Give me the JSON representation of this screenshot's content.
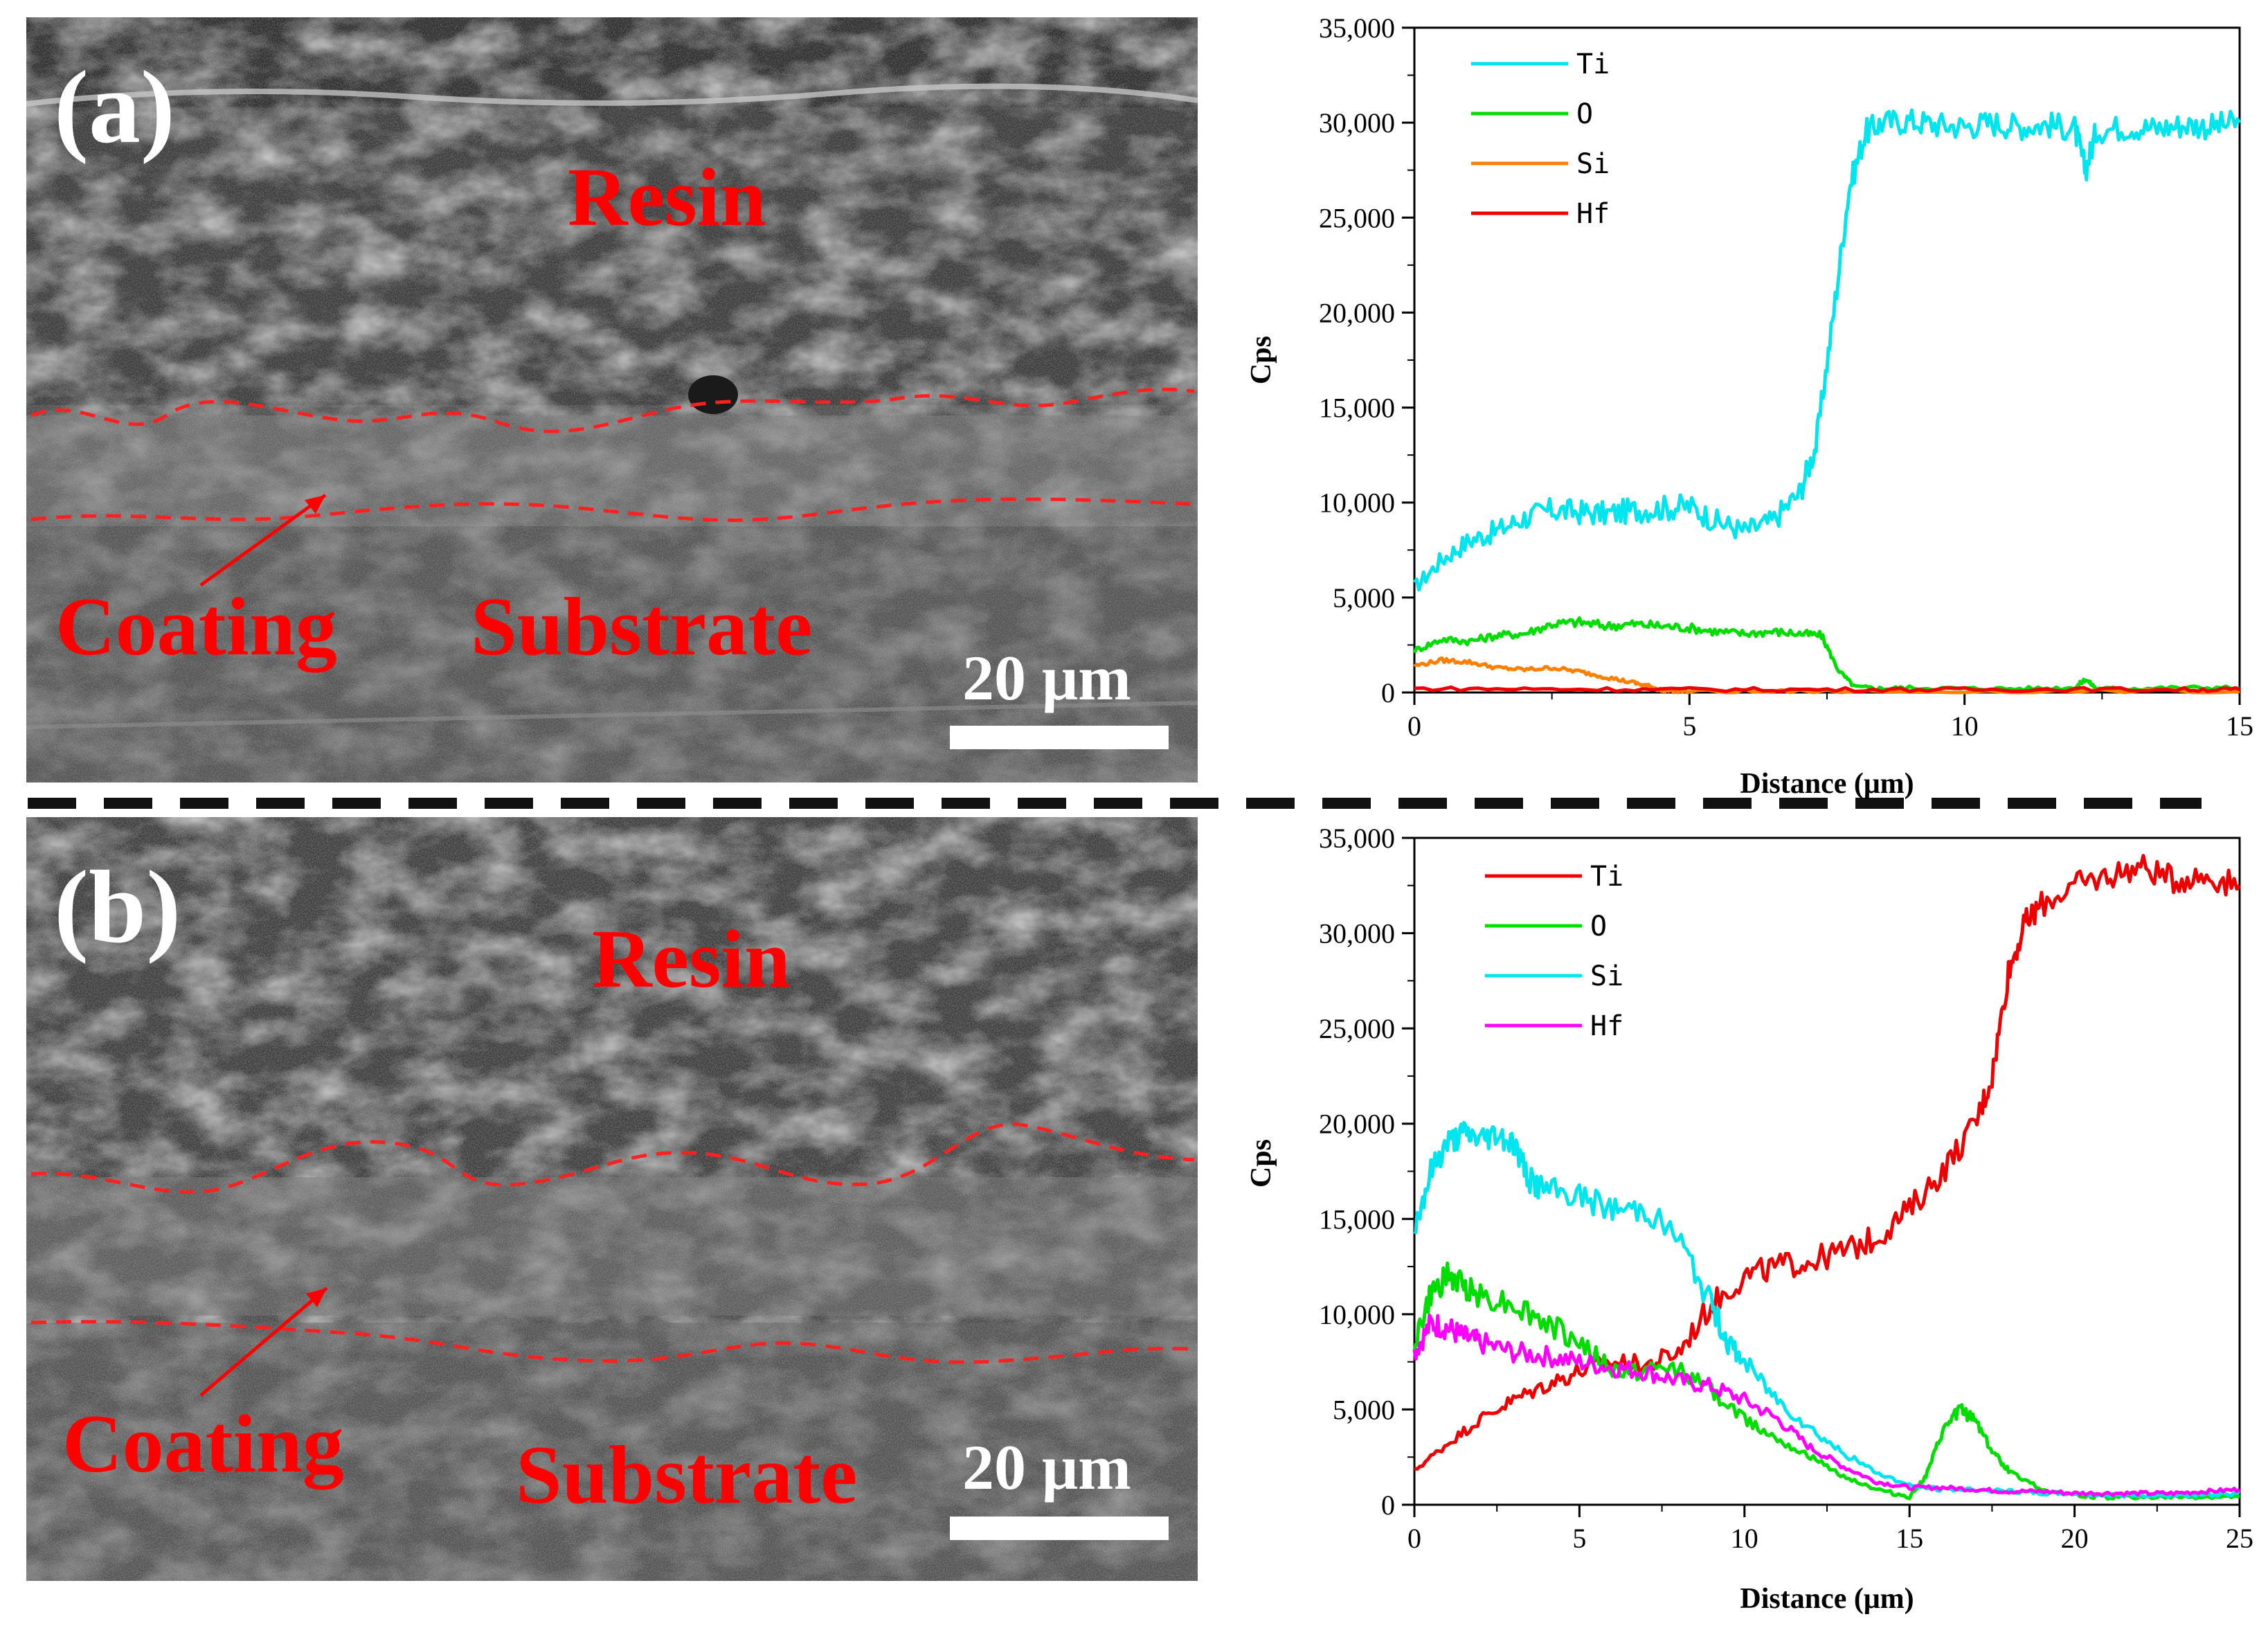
{
  "panels": [
    {
      "label": "(a)",
      "sem": {
        "labels": {
          "resin": "Resin",
          "coating": "Coating",
          "substrate": "Substrate"
        },
        "scale_bar": "20 μm"
      }
    },
    {
      "label": "(b)",
      "sem": {
        "labels": {
          "resin": "Resin",
          "coating": "Coating",
          "substrate": "Substrate"
        },
        "scale_bar": "20 μm"
      }
    }
  ],
  "colors": {
    "cyan": "#00e5ee",
    "green": "#00dd00",
    "orange": "#ff7f00",
    "red": "#ee0000",
    "magenta": "#ff00ff",
    "annotation_red": "#ff0000"
  },
  "chart_data": [
    {
      "type": "line",
      "title": "",
      "xlabel": "Distance (μm)",
      "ylabel": "Cps",
      "xlim": [
        0,
        15
      ],
      "ylim": [
        0,
        35000
      ],
      "xticks": [
        0,
        5,
        10,
        15
      ],
      "xtick_labels": [
        "0",
        "5",
        "10",
        "15"
      ],
      "yticks": [
        0,
        5000,
        10000,
        15000,
        20000,
        25000,
        30000,
        35000
      ],
      "ytick_labels": [
        "0",
        "5,000",
        "10,000",
        "15,000",
        "20,000",
        "25,000",
        "30,000",
        "35,000"
      ],
      "legend_position": "top-left",
      "series": [
        {
          "name": "Ti",
          "color": "#00e5ee",
          "x": [
            0,
            0.5,
            1,
            1.5,
            2,
            2.5,
            3,
            3.5,
            4,
            4.5,
            5,
            5.5,
            6,
            6.5,
            7,
            7.3,
            7.6,
            7.9,
            8.2,
            8.5,
            9,
            9.5,
            10,
            10.5,
            11,
            11.5,
            12,
            12.2,
            12.4,
            13,
            13.5,
            14,
            14.5,
            15
          ],
          "y": [
            5500,
            7000,
            8000,
            8500,
            9200,
            9600,
            9500,
            9400,
            9600,
            9700,
            9800,
            9000,
            8500,
            9000,
            10500,
            13000,
            19500,
            26500,
            29500,
            30000,
            30100,
            29900,
            29800,
            30000,
            29800,
            29900,
            29700,
            27500,
            29600,
            29800,
            29700,
            29900,
            29800,
            30000
          ]
        },
        {
          "name": "O",
          "color": "#00dd00",
          "x": [
            0,
            0.5,
            1,
            1.5,
            2,
            2.5,
            3,
            3.5,
            4,
            4.5,
            5,
            5.5,
            6,
            6.5,
            7,
            7.4,
            7.7,
            8,
            8.5,
            9,
            10,
            11,
            12,
            12.2,
            12.4,
            13,
            14,
            15
          ],
          "y": [
            2200,
            2800,
            2700,
            3000,
            3100,
            3600,
            3700,
            3500,
            3600,
            3500,
            3400,
            3200,
            3100,
            3200,
            3100,
            3000,
            1200,
            300,
            200,
            250,
            200,
            200,
            250,
            700,
            200,
            200,
            250,
            250
          ]
        },
        {
          "name": "Si",
          "color": "#ff7f00",
          "x": [
            0,
            0.5,
            1,
            1.5,
            2,
            2.5,
            3,
            3.5,
            4,
            4.3,
            4.5,
            5,
            7,
            10,
            15
          ],
          "y": [
            1400,
            1700,
            1600,
            1300,
            1200,
            1300,
            1100,
            800,
            500,
            300,
            100,
            50,
            50,
            50,
            50
          ]
        },
        {
          "name": "Hf",
          "color": "#ee0000",
          "x": [
            0,
            2,
            4,
            6,
            8,
            10,
            12,
            14,
            15
          ],
          "y": [
            200,
            180,
            160,
            150,
            150,
            150,
            160,
            150,
            150
          ]
        }
      ]
    },
    {
      "type": "line",
      "title": "",
      "xlabel": "Distance (μm)",
      "ylabel": "Cps",
      "xlim": [
        0,
        25
      ],
      "ylim": [
        0,
        35000
      ],
      "xticks": [
        0,
        5,
        10,
        15,
        20,
        25
      ],
      "xtick_labels": [
        "0",
        "5",
        "10",
        "15",
        "20",
        "25"
      ],
      "yticks": [
        0,
        5000,
        10000,
        15000,
        20000,
        25000,
        30000,
        35000
      ],
      "ytick_labels": [
        "0",
        "5,000",
        "10,000",
        "15,000",
        "20,000",
        "25,000",
        "30,000",
        "35,000"
      ],
      "legend_position": "top-left",
      "series": [
        {
          "name": "Ti",
          "color": "#ee0000",
          "x": [
            0,
            1,
            2,
            3,
            4,
            5,
            6,
            7,
            8,
            9,
            10,
            11,
            12,
            13,
            14,
            15,
            16,
            17,
            17.5,
            18,
            18.5,
            19,
            20,
            21,
            22,
            23,
            24,
            25
          ],
          "y": [
            1800,
            3200,
            4500,
            5500,
            6300,
            7000,
            7500,
            7300,
            8000,
            10500,
            12000,
            12500,
            12800,
            13300,
            14000,
            15500,
            17500,
            20000,
            22500,
            28000,
            30500,
            31500,
            32500,
            33000,
            33500,
            32800,
            33000,
            32500
          ]
        },
        {
          "name": "O",
          "color": "#00dd00",
          "x": [
            0,
            0.5,
            1,
            1.5,
            2,
            3,
            4,
            5,
            6,
            7,
            8,
            9,
            10,
            11,
            12,
            13,
            14,
            15,
            15.5,
            16,
            16.5,
            17,
            17.5,
            18,
            19,
            20,
            21,
            22,
            23,
            24,
            25
          ],
          "y": [
            8500,
            11000,
            12000,
            11500,
            11000,
            10500,
            9500,
            8500,
            7000,
            7000,
            7200,
            6000,
            4500,
            3500,
            2500,
            1500,
            800,
            400,
            1500,
            3800,
            5000,
            4500,
            2800,
            1800,
            800,
            500,
            400,
            400,
            400,
            400,
            400
          ]
        },
        {
          "name": "Si",
          "color": "#00e5ee",
          "x": [
            0,
            0.5,
            1,
            1.5,
            2,
            2.5,
            3,
            3.5,
            4,
            5,
            6,
            7,
            8,
            9,
            9.5,
            10,
            11,
            12,
            13,
            14,
            15,
            16,
            17,
            18,
            19,
            20,
            21,
            22,
            23,
            24,
            25
          ],
          "y": [
            14500,
            17500,
            19000,
            19500,
            19200,
            19500,
            19000,
            17000,
            16500,
            16200,
            15500,
            15500,
            14000,
            10500,
            8500,
            7500,
            5500,
            4000,
            2700,
            1700,
            1000,
            800,
            800,
            700,
            600,
            600,
            500,
            500,
            500,
            500,
            600
          ]
        },
        {
          "name": "Hf",
          "color": "#ff00ff",
          "x": [
            0,
            0.5,
            1,
            1.5,
            2,
            3,
            4,
            5,
            6,
            7,
            8,
            9,
            10,
            11,
            12,
            13,
            14,
            15,
            16,
            17,
            18,
            19,
            20,
            21,
            22,
            23,
            24,
            25
          ],
          "y": [
            8000,
            9500,
            9300,
            8800,
            8500,
            8000,
            7800,
            7500,
            7200,
            7000,
            6500,
            6200,
            5500,
            4500,
            3000,
            2000,
            1200,
            900,
            900,
            800,
            700,
            700,
            600,
            600,
            600,
            600,
            700,
            800
          ]
        }
      ]
    }
  ]
}
